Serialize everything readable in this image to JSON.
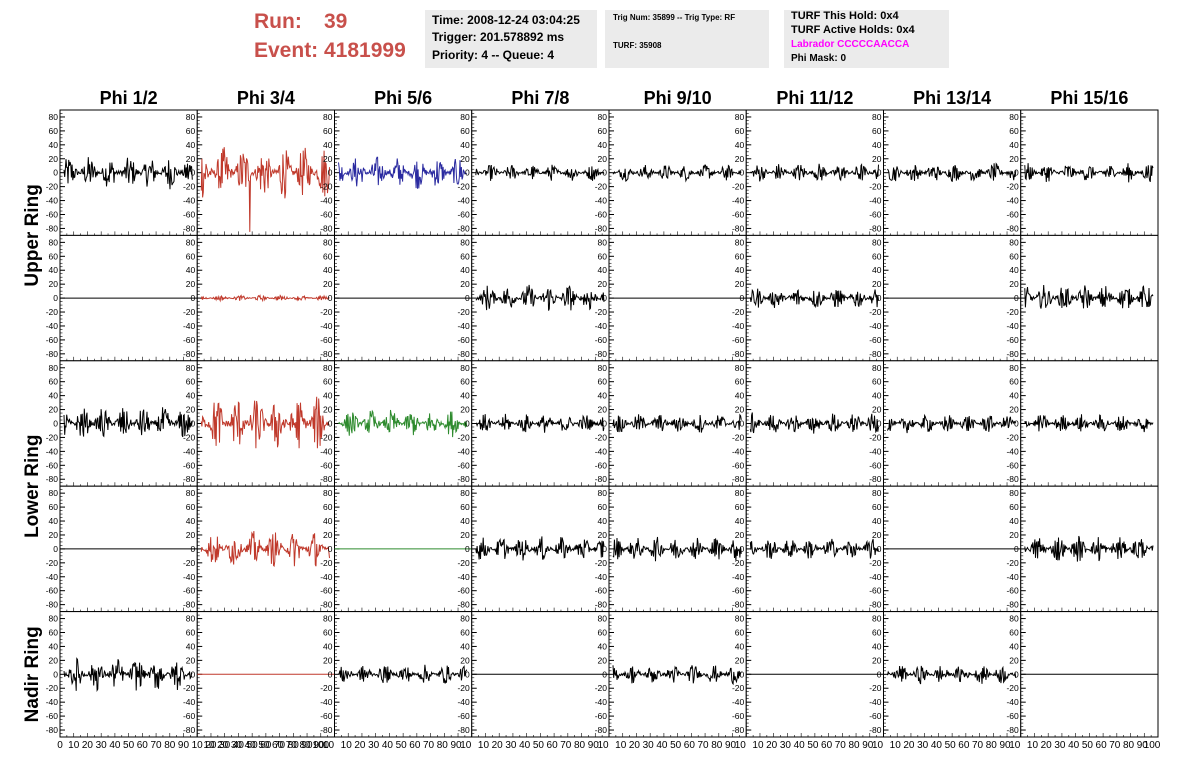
{
  "header": {
    "run_label": "Run:",
    "run_value": "39",
    "event_label": "Event:",
    "event_value": "4181999",
    "box1": {
      "time": "Time: 2008-12-24 03:04:25",
      "trigger": "Trigger: 201.578892 ms",
      "priority": "Priority: 4 -- Queue: 4"
    },
    "box2": {
      "trig": "Trig Num: 35899 -- Trig Type: RF",
      "turf": "TURF: 35908"
    },
    "box3": {
      "this_hold": "TURF This Hold: 0x4",
      "active_holds": "TURF Active Holds: 0x4",
      "labrador": "Labrador CCCCCAACCA",
      "phi_mask": "Phi Mask: 0"
    }
  },
  "colors": {
    "run_text": "#c8504b",
    "labrador_text": "#ff00ff",
    "black_trace": "#000000",
    "red_trace": "#c0392b",
    "blue_trace": "#2a2aa0",
    "green_trace": "#2e8b2e",
    "info_box_bg": "#ebebeb"
  },
  "chart_data": {
    "type": "line",
    "layout": "grid of waveform panels, 5 rows x 8 columns",
    "column_titles": [
      "Phi 1/2",
      "Phi 3/4",
      "Phi 5/6",
      "Phi 7/8",
      "Phi 9/10",
      "Phi 11/12",
      "Phi 13/14",
      "Phi 15/16"
    ],
    "row_groups": [
      {
        "label": "Upper Ring",
        "rows": [
          0,
          1
        ]
      },
      {
        "label": "Lower Ring",
        "rows": [
          2,
          3
        ]
      },
      {
        "label": "Nadir Ring",
        "rows": [
          4
        ]
      }
    ],
    "ylim": [
      -90,
      90
    ],
    "yticks": [
      -80,
      -60,
      -40,
      -20,
      0,
      20,
      40,
      60,
      80
    ],
    "xlim": [
      0,
      100
    ],
    "x_tick_labels": [
      "0",
      "10",
      "20",
      "30",
      "40",
      "50",
      "60",
      "70",
      "80",
      "90",
      "10",
      "20",
      "30",
      "40",
      "50",
      "60",
      "70",
      "80",
      "90",
      "100"
    ],
    "panels": [
      [
        {
          "amp": 24,
          "color": "black"
        },
        {
          "amp": 38,
          "color": "red",
          "spike": -85
        },
        {
          "amp": 24,
          "color": "blue"
        },
        {
          "amp": 12,
          "color": "black"
        },
        {
          "amp": 12,
          "color": "black"
        },
        {
          "amp": 14,
          "color": "black"
        },
        {
          "amp": 14,
          "color": "black"
        },
        {
          "amp": 14,
          "color": "black"
        }
      ],
      [
        {
          "amp": 0,
          "color": "black"
        },
        {
          "amp": 4,
          "color": "red"
        },
        {
          "amp": 0,
          "color": "black"
        },
        {
          "amp": 20,
          "color": "black"
        },
        {
          "amp": 0,
          "color": "black"
        },
        {
          "amp": 16,
          "color": "black"
        },
        {
          "amp": 0,
          "color": "black"
        },
        {
          "amp": 20,
          "color": "black"
        }
      ],
      [
        {
          "amp": 24,
          "color": "black"
        },
        {
          "amp": 40,
          "color": "red"
        },
        {
          "amp": 20,
          "color": "green"
        },
        {
          "amp": 14,
          "color": "black"
        },
        {
          "amp": 14,
          "color": "black"
        },
        {
          "amp": 16,
          "color": "black"
        },
        {
          "amp": 14,
          "color": "black"
        },
        {
          "amp": 14,
          "color": "black"
        }
      ],
      [
        {
          "amp": 0,
          "color": "black"
        },
        {
          "amp": 26,
          "color": "red"
        },
        {
          "amp": 0,
          "color": "green"
        },
        {
          "amp": 18,
          "color": "black"
        },
        {
          "amp": 18,
          "color": "black"
        },
        {
          "amp": 16,
          "color": "black"
        },
        {
          "amp": 0,
          "color": "black"
        },
        {
          "amp": 20,
          "color": "black"
        }
      ],
      [
        {
          "amp": 24,
          "color": "black"
        },
        {
          "amp": 0,
          "color": "red"
        },
        {
          "amp": 14,
          "color": "black"
        },
        {
          "amp": 0,
          "color": "black"
        },
        {
          "amp": 14,
          "color": "black"
        },
        {
          "amp": 0,
          "color": "black"
        },
        {
          "amp": 14,
          "color": "black"
        },
        {
          "amp": 0,
          "color": "black"
        }
      ]
    ]
  }
}
